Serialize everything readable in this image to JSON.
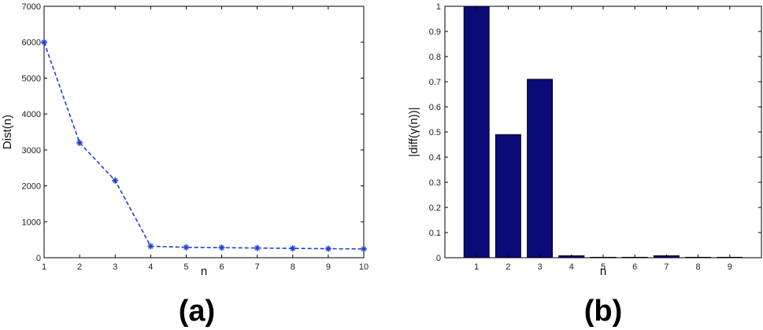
{
  "chart_data": [
    {
      "type": "line",
      "panel_label": "(a)",
      "xlabel": "n",
      "ylabel": "Dist(n)",
      "xlim": [
        1,
        10
      ],
      "ylim": [
        0,
        7000
      ],
      "xticks": [
        1,
        2,
        3,
        4,
        5,
        6,
        7,
        8,
        9,
        10
      ],
      "yticks": [
        0,
        1000,
        2000,
        3000,
        4000,
        5000,
        6000,
        7000
      ],
      "grid": false,
      "series": [
        {
          "x": [
            1,
            2,
            3,
            4,
            5,
            6,
            7,
            8,
            9,
            10
          ],
          "values": [
            6000,
            3200,
            2150,
            320,
            290,
            280,
            270,
            260,
            250,
            245
          ],
          "color": "#1f3fd6",
          "line_style": "dashed",
          "marker": "star"
        }
      ]
    },
    {
      "type": "bar",
      "panel_label": "(b)",
      "xlabel": "n",
      "ylabel": "|diff(γ(n))|",
      "categories": [
        "1",
        "2",
        "3",
        "4",
        "5",
        "6",
        "7",
        "8",
        "9"
      ],
      "values": [
        1.0,
        0.49,
        0.71,
        0.008,
        0.002,
        0.002,
        0.008,
        0.002,
        0.002
      ],
      "xlim": [
        0,
        10
      ],
      "ylim": [
        0,
        1
      ],
      "yticks": [
        0,
        0.1,
        0.2,
        0.3,
        0.4,
        0.5,
        0.6,
        0.7,
        0.8,
        0.9,
        1
      ],
      "grid": false,
      "color": "#0a0a78"
    }
  ]
}
